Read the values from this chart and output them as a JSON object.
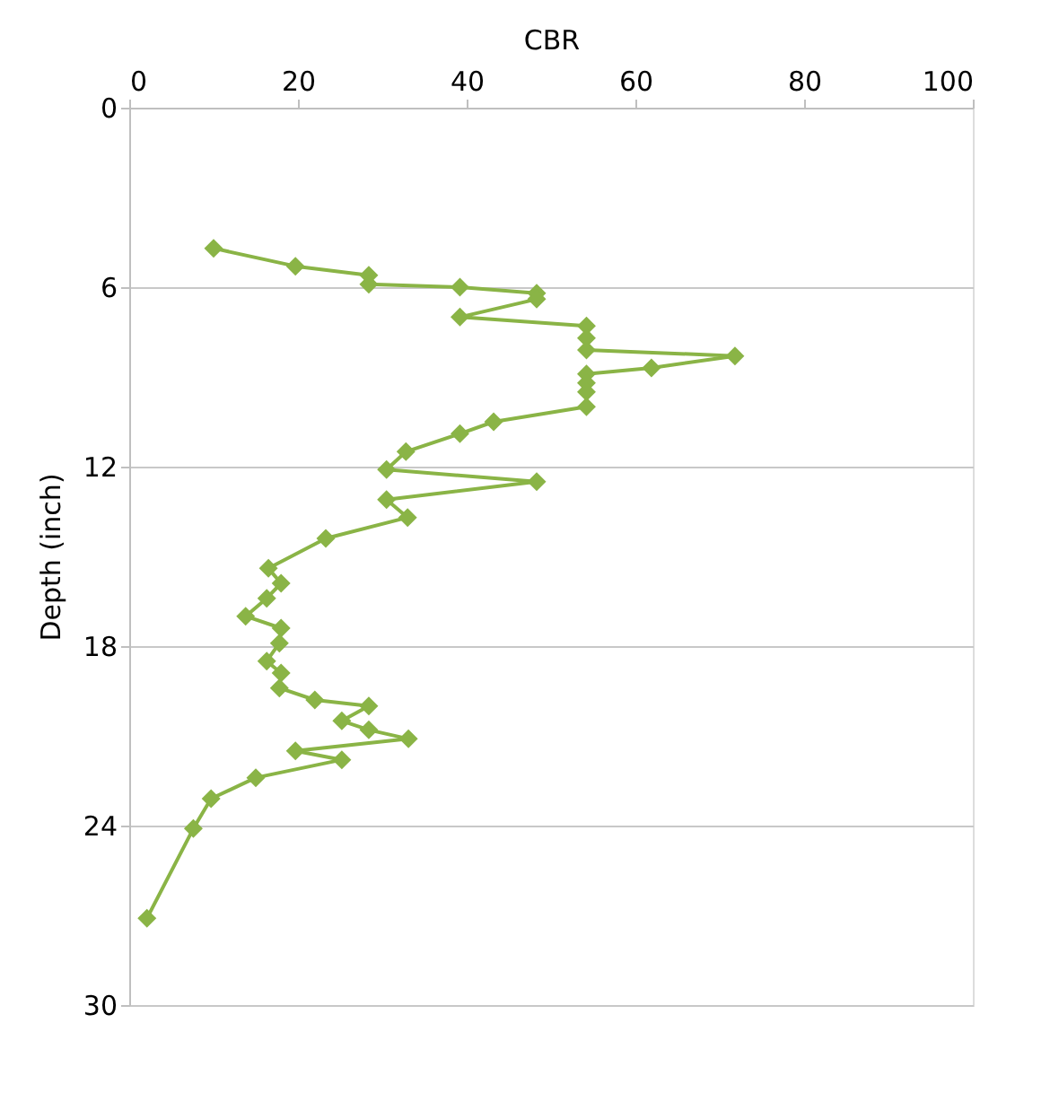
{
  "chart_data": {
    "type": "line",
    "xlabel": "CBR",
    "ylabel": "Depth (inch)",
    "xlim": [
      0,
      100
    ],
    "xticks": [
      0,
      20,
      40,
      60,
      80,
      100
    ],
    "ylim": [
      30,
      0
    ],
    "yticks": [
      0,
      6,
      12,
      18,
      24,
      30
    ],
    "grid": "y",
    "marker": "diamond",
    "line_style": "solid",
    "series": [
      {
        "color": "#8ab446",
        "x": [
          10.0,
          19.7,
          28.4,
          28.4,
          39.2,
          48.3,
          48.3,
          39.2,
          54.2,
          54.2,
          54.2,
          71.8,
          61.9,
          54.2,
          54.2,
          54.2,
          54.2,
          43.2,
          39.2,
          32.8,
          30.5,
          48.3,
          30.5,
          33.0,
          23.3,
          16.5,
          18.0,
          16.3,
          13.8,
          18.0,
          17.8,
          16.3,
          18.0,
          17.8,
          22.0,
          28.4,
          25.2,
          28.4,
          33.1,
          19.7,
          25.2,
          15.0,
          9.7,
          7.6,
          2.1
        ],
        "values": [
          4.7,
          5.3,
          5.6,
          5.9,
          6.0,
          6.2,
          6.4,
          7.0,
          7.3,
          7.7,
          8.1,
          8.3,
          8.7,
          8.9,
          9.2,
          9.5,
          10.0,
          10.5,
          10.9,
          11.5,
          12.1,
          12.5,
          13.1,
          13.7,
          14.4,
          15.4,
          15.9,
          16.4,
          17.0,
          17.4,
          17.9,
          18.5,
          18.9,
          19.4,
          19.8,
          20.0,
          20.5,
          20.8,
          21.1,
          21.5,
          21.8,
          22.4,
          23.1,
          24.1,
          27.1
        ]
      }
    ]
  }
}
